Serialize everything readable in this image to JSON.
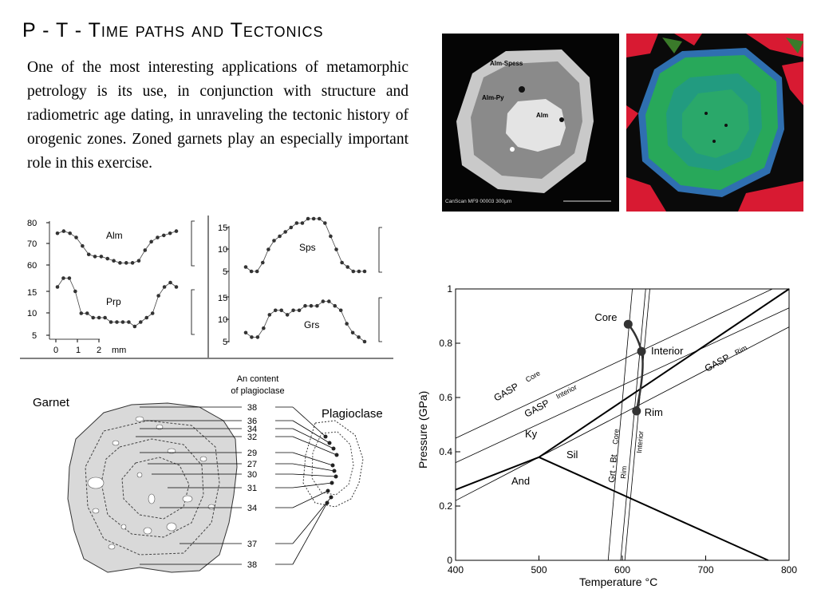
{
  "title": "P - T - Time paths and Tectonics",
  "paragraph": "One of the most interesting applications of metamorphic petrology is its use, in conjunction with structure and radiometric age dating, in unraveling the tectonic history of orogenic zones. Zoned garnets play an especially important role in this exercise.",
  "bse_image": {
    "labels": {
      "outer": "Alm-Spess",
      "middle": "Alm-Py",
      "core": "Alm"
    },
    "footer": "CanScan MF9    00003    300μm"
  },
  "profiles": {
    "left_upper": {
      "label": "Alm",
      "ticks": [
        "80",
        "70",
        "60"
      ],
      "values": [
        75,
        76,
        75,
        73,
        69,
        65,
        64,
        64,
        63,
        62,
        61,
        61,
        61,
        62,
        67,
        71,
        73,
        74,
        75,
        76
      ]
    },
    "left_lower": {
      "label": "Prp",
      "ticks": [
        "15",
        "10",
        "5"
      ],
      "values": [
        16,
        18,
        18,
        15,
        10,
        10,
        9,
        9,
        9,
        8,
        8,
        8,
        8,
        7,
        8,
        9,
        10,
        14,
        16,
        17,
        16
      ]
    },
    "right_upper": {
      "label": "Sps",
      "ticks": [
        "15",
        "10",
        "5"
      ],
      "values": [
        6,
        5,
        5,
        7,
        10,
        12,
        13,
        14,
        15,
        16,
        16,
        17,
        17,
        17,
        16,
        13,
        10,
        7,
        6,
        5,
        5,
        5
      ]
    },
    "right_lower": {
      "label": "Grs",
      "ticks": [
        "15",
        "10",
        "5"
      ],
      "values": [
        7,
        6,
        6,
        8,
        11,
        12,
        12,
        11,
        12,
        12,
        13,
        13,
        13,
        14,
        14,
        13,
        12,
        9,
        7,
        6,
        5
      ]
    },
    "scale": {
      "ticks": [
        "0",
        "1",
        "2"
      ],
      "unit": "mm"
    }
  },
  "zoning_diagram": {
    "garnet_label": "Garnet",
    "plag_label": "Plagioclase",
    "header_line1": "An content",
    "header_line2": "of plagioclase",
    "an_values": [
      "38",
      "36",
      "34",
      "32",
      "29",
      "27",
      "30",
      "31",
      "34",
      "37",
      "38"
    ]
  },
  "pt_chart": {
    "chart_data": {
      "type": "line",
      "xlabel": "Temperature °C",
      "ylabel": "Pressure (GPa)",
      "xlim": [
        400,
        800
      ],
      "ylim": [
        0,
        1.0
      ],
      "x_ticks": [
        400,
        500,
        600,
        700,
        800
      ],
      "y_ticks": [
        0,
        0.2,
        0.4,
        0.6,
        0.8,
        1.0
      ],
      "points": [
        {
          "name": "Core",
          "x": 607,
          "y": 0.87
        },
        {
          "name": "Interior",
          "x": 623,
          "y": 0.77
        },
        {
          "name": "Rim",
          "x": 617,
          "y": 0.55
        }
      ],
      "field_labels": [
        "Ky",
        "Sil",
        "And"
      ],
      "line_labels": {
        "gasp_core": "GASP",
        "gasp_core_sub": "Core",
        "gasp_interior": "GASP",
        "gasp_interior_sub": "Interior",
        "gasp_rim": "GASP",
        "gasp_rim_sub": "Rim",
        "grt_bt": "Grt - Bt",
        "grt_core": "Core",
        "grt_rim": "Rim",
        "grt_interior": "Interior"
      }
    }
  }
}
